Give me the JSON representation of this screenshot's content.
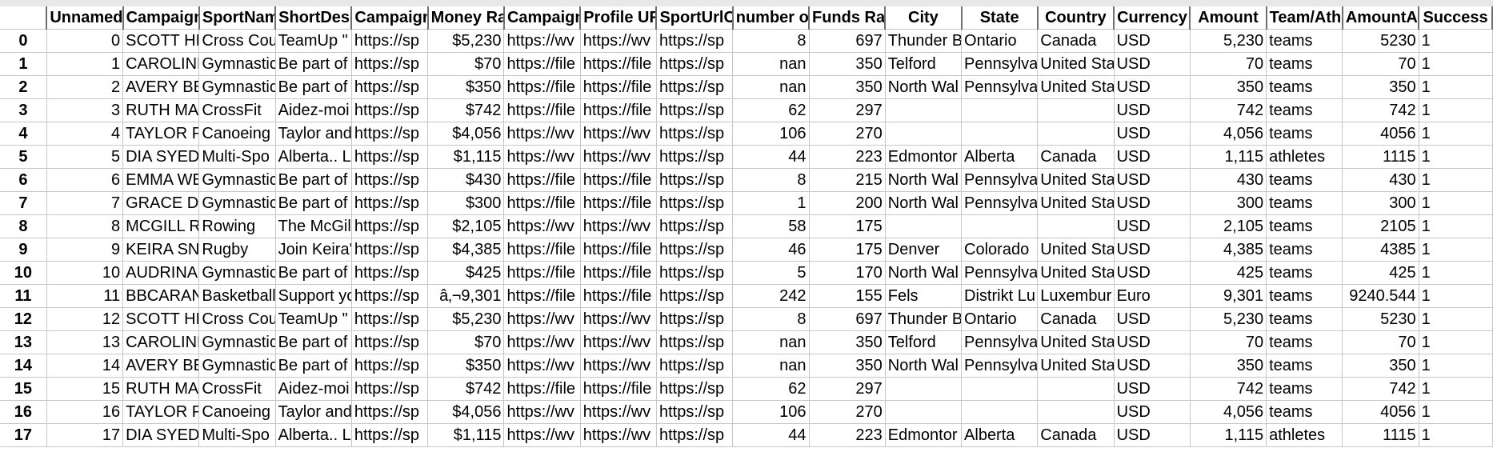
{
  "sheet": {
    "columns": [
      {
        "label": "",
        "align": "idx"
      },
      {
        "label": "Unnamed",
        "align": "r"
      },
      {
        "label": "Campaign",
        "align": "l"
      },
      {
        "label": "SportNam",
        "align": "l"
      },
      {
        "label": "ShortDesc",
        "align": "l"
      },
      {
        "label": "Campaign",
        "align": "l"
      },
      {
        "label": "Money Ra",
        "align": "r"
      },
      {
        "label": "Campaign",
        "align": "l"
      },
      {
        "label": "Profile UR",
        "align": "l"
      },
      {
        "label": "SportUrlC",
        "align": "l"
      },
      {
        "label": "number o",
        "align": "r"
      },
      {
        "label": "Funds Rais",
        "align": "r"
      },
      {
        "label": "City",
        "align": "l"
      },
      {
        "label": "State",
        "align": "l"
      },
      {
        "label": "Country",
        "align": "l"
      },
      {
        "label": "Currency",
        "align": "l"
      },
      {
        "label": "Amount",
        "align": "r"
      },
      {
        "label": "Team/Ath",
        "align": "l"
      },
      {
        "label": "AmountAc",
        "align": "r"
      },
      {
        "label": "Success",
        "align": "l"
      }
    ],
    "rows": [
      [
        "0",
        "0",
        "SCOTT HIL",
        "Cross Cou",
        "TeamUp \"",
        "https://sp",
        "$5,230",
        "https://wv",
        "https://wv",
        "https://sp",
        "8",
        "697",
        "Thunder B",
        "Ontario",
        "Canada",
        "USD",
        "5,230",
        "teams",
        "5230",
        "1"
      ],
      [
        "1",
        "1",
        "CAROLINE",
        "Gymnastic",
        "Be part of",
        "https://sp",
        "$70",
        "https://file",
        "https://file",
        "https://sp",
        "nan",
        "350",
        "Telford",
        "Pennsylva",
        "United Sta",
        "USD",
        "70",
        "teams",
        "70",
        "1"
      ],
      [
        "2",
        "2",
        "AVERY BEL",
        "Gymnastic",
        "Be part of",
        "https://sp",
        "$350",
        "https://file",
        "https://file",
        "https://sp",
        "nan",
        "350",
        "North Wal",
        "Pennsylva",
        "United Sta",
        "USD",
        "350",
        "teams",
        "350",
        "1"
      ],
      [
        "3",
        "3",
        "RUTH MAI",
        "CrossFit",
        "Aidez-moi",
        "https://sp",
        "$742",
        "https://file",
        "https://file",
        "https://sp",
        "62",
        "297",
        "",
        "",
        "",
        "USD",
        "742",
        "teams",
        "742",
        "1"
      ],
      [
        "4",
        "4",
        "TAYLOR P(",
        "Canoeing",
        "Taylor and",
        "https://sp",
        "$4,056",
        "https://wv",
        "https://wv",
        "https://sp",
        "106",
        "270",
        "",
        "",
        "",
        "USD",
        "4,056",
        "teams",
        "4056",
        "1"
      ],
      [
        "5",
        "5",
        "DIA SYED",
        "Multi-Spo",
        "Alberta.. L",
        "https://sp",
        "$1,115",
        "https://wv",
        "https://wv",
        "https://sp",
        "44",
        "223",
        "Edmontor",
        "Alberta",
        "Canada",
        "USD",
        "1,115",
        "athletes",
        "1115",
        "1"
      ],
      [
        "6",
        "6",
        "EMMA WE",
        "Gymnastic",
        "Be part of",
        "https://sp",
        "$430",
        "https://file",
        "https://file",
        "https://sp",
        "8",
        "215",
        "North Wal",
        "Pennsylva",
        "United Sta",
        "USD",
        "430",
        "teams",
        "430",
        "1"
      ],
      [
        "7",
        "7",
        "GRACE DA",
        "Gymnastic",
        "Be part of",
        "https://sp",
        "$300",
        "https://file",
        "https://file",
        "https://sp",
        "1",
        "200",
        "North Wal",
        "Pennsylva",
        "United Sta",
        "USD",
        "300",
        "teams",
        "300",
        "1"
      ],
      [
        "8",
        "8",
        "MCGILL RO",
        "Rowing",
        "The McGil",
        "https://sp",
        "$2,105",
        "https://wv",
        "https://wv",
        "https://sp",
        "58",
        "175",
        "",
        "",
        "",
        "USD",
        "2,105",
        "teams",
        "2105",
        "1"
      ],
      [
        "9",
        "9",
        "KEIRA SNY",
        "Rugby",
        "Join Keira'",
        "https://sp",
        "$4,385",
        "https://file",
        "https://file",
        "https://sp",
        "46",
        "175",
        "Denver",
        "Colorado",
        "United Sta",
        "USD",
        "4,385",
        "teams",
        "4385",
        "1"
      ],
      [
        "10",
        "10",
        "AUDRINA",
        "Gymnastic",
        "Be part of",
        "https://sp",
        "$425",
        "https://file",
        "https://file",
        "https://sp",
        "5",
        "170",
        "North Wal",
        "Pennsylva",
        "United Sta",
        "USD",
        "425",
        "teams",
        "425",
        "1"
      ],
      [
        "11",
        "11",
        "BBCARANT",
        "Basketball",
        "Support yo",
        "https://sp",
        "â‚¬9,301",
        "https://file",
        "https://file",
        "https://sp",
        "242",
        "155",
        "Fels",
        "Distrikt Lu",
        "Luxembur",
        "Euro",
        "9,301",
        "teams",
        "9240.544",
        "1"
      ],
      [
        "12",
        "12",
        "SCOTT HIL",
        "Cross Cou",
        "TeamUp \"",
        "https://sp",
        "$5,230",
        "https://wv",
        "https://wv",
        "https://sp",
        "8",
        "697",
        "Thunder B",
        "Ontario",
        "Canada",
        "USD",
        "5,230",
        "teams",
        "5230",
        "1"
      ],
      [
        "13",
        "13",
        "CAROLINE",
        "Gymnastic",
        "Be part of",
        "https://sp",
        "$70",
        "https://wv",
        "https://wv",
        "https://sp",
        "nan",
        "350",
        "Telford",
        "Pennsylva",
        "United Sta",
        "USD",
        "70",
        "teams",
        "70",
        "1"
      ],
      [
        "14",
        "14",
        "AVERY BEL",
        "Gymnastic",
        "Be part of",
        "https://sp",
        "$350",
        "https://wv",
        "https://wv",
        "https://sp",
        "nan",
        "350",
        "North Wal",
        "Pennsylva",
        "United Sta",
        "USD",
        "350",
        "teams",
        "350",
        "1"
      ],
      [
        "15",
        "15",
        "RUTH MAI",
        "CrossFit",
        "Aidez-moi",
        "https://sp",
        "$742",
        "https://file",
        "https://file",
        "https://sp",
        "62",
        "297",
        "",
        "",
        "",
        "USD",
        "742",
        "teams",
        "742",
        "1"
      ],
      [
        "16",
        "16",
        "TAYLOR P(",
        "Canoeing",
        "Taylor and",
        "https://sp",
        "$4,056",
        "https://wv",
        "https://wv",
        "https://sp",
        "106",
        "270",
        "",
        "",
        "",
        "USD",
        "4,056",
        "teams",
        "4056",
        "1"
      ],
      [
        "17",
        "17",
        "DIA SYED",
        "Multi-Spo",
        "Alberta.. L",
        "https://sp",
        "$1,115",
        "https://wv",
        "https://wv",
        "https://sp",
        "44",
        "223",
        "Edmontor",
        "Alberta",
        "Canada",
        "USD",
        "1,115",
        "athletes",
        "1115",
        "1"
      ]
    ]
  }
}
